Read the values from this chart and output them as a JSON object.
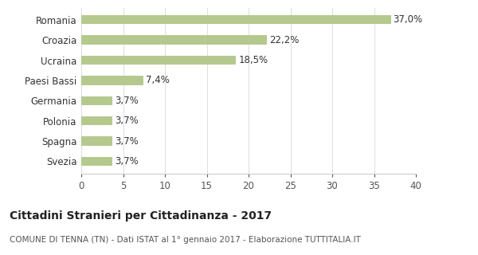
{
  "categories": [
    "Svezia",
    "Spagna",
    "Polonia",
    "Germania",
    "Paesi Bassi",
    "Ucraina",
    "Croazia",
    "Romania"
  ],
  "values": [
    3.7,
    3.7,
    3.7,
    3.7,
    7.4,
    18.5,
    22.2,
    37.0
  ],
  "labels": [
    "3,7%",
    "3,7%",
    "3,7%",
    "3,7%",
    "7,4%",
    "18,5%",
    "22,2%",
    "37,0%"
  ],
  "bar_color": "#b5c98e",
  "title": "Cittadini Stranieri per Cittadinanza - 2017",
  "subtitle": "COMUNE DI TENNA (TN) - Dati ISTAT al 1° gennaio 2017 - Elaborazione TUTTITALIA.IT",
  "xlim": [
    0,
    40
  ],
  "xticks": [
    0,
    5,
    10,
    15,
    20,
    25,
    30,
    35,
    40
  ],
  "background_color": "#ffffff",
  "title_fontsize": 10,
  "subtitle_fontsize": 7.5,
  "label_fontsize": 8.5,
  "ytick_fontsize": 8.5,
  "xtick_fontsize": 8.5
}
